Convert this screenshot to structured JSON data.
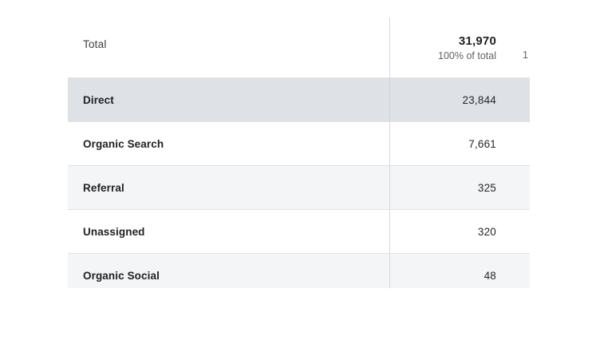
{
  "table": {
    "total": {
      "label": "Total",
      "value": "31,970",
      "subtitle": "100% of total",
      "next_column_fragment": "1"
    },
    "rows": [
      {
        "label": "Direct",
        "value": "23,844",
        "highlighted": true,
        "shaded": false
      },
      {
        "label": "Organic Search",
        "value": "7,661",
        "highlighted": false,
        "shaded": false
      },
      {
        "label": "Referral",
        "value": "325",
        "highlighted": false,
        "shaded": true
      },
      {
        "label": "Unassigned",
        "value": "320",
        "highlighted": false,
        "shaded": false
      },
      {
        "label": "Organic Social",
        "value": "48",
        "highlighted": false,
        "shaded": true
      }
    ],
    "colors": {
      "highlight_row_bg": "#dee1e5",
      "shaded_row_bg": "#f4f5f7",
      "row_separator": "#e0e2e6",
      "column_divider": "#d7d9dd",
      "label_text": "#202124",
      "subtitle_text": "#5f6368"
    }
  }
}
